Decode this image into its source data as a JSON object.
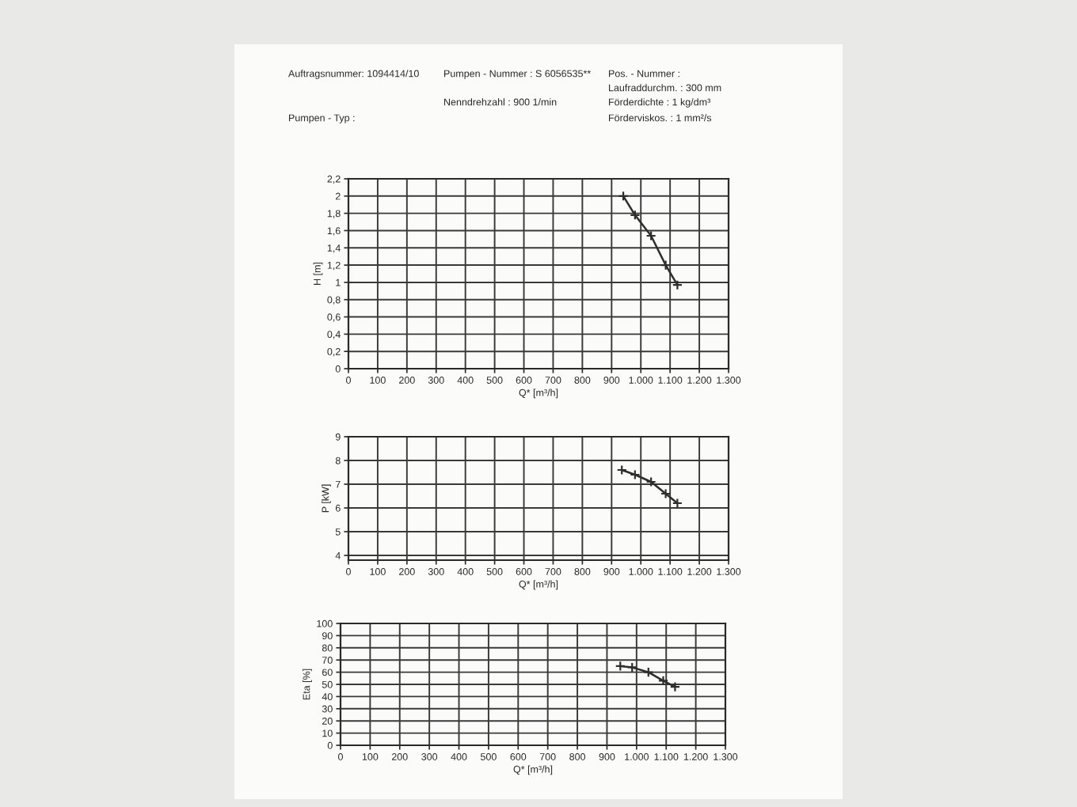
{
  "chart_data": [
    {
      "type": "other",
      "annotations": [
        "Auftragsnummer: 1094414/10",
        "Pumpen - Nummer : S 6056535**",
        "Pos. - Nummer :",
        "Laufraddurchm. : 300 mm",
        "Nenndrehzahl : 900 1/min",
        "Förderdichte : 1 kg/dm³",
        "Pumpen - Typ :",
        "Förderviskos. : 1 mm²/s"
      ]
    },
    {
      "type": "line",
      "xlabel": "Q* [m³/h]",
      "ylabel": "H [m]",
      "x": [
        940,
        980,
        1035,
        1085,
        1125
      ],
      "values": [
        2.0,
        1.78,
        1.54,
        1.2,
        0.97
      ],
      "color": "#2e2e2e",
      "marker": "cross",
      "line_style": "solid",
      "grid": true,
      "xlim": [
        0,
        1300
      ],
      "xticks": [
        0,
        100,
        200,
        300,
        400,
        500,
        600,
        700,
        800,
        900,
        {
          "value": 1000,
          "label": "1.000"
        },
        {
          "value": 1100,
          "label": "1.100"
        },
        {
          "value": 1200,
          "label": "1.200"
        },
        {
          "value": 1300,
          "label": "1.300"
        }
      ],
      "ylim": [
        0,
        2.2
      ],
      "yticks": [
        0,
        {
          "value": 0.2,
          "label": "0,2"
        },
        {
          "value": 0.4,
          "label": "0,4"
        },
        {
          "value": 0.6,
          "label": "0,6"
        },
        {
          "value": 0.8,
          "label": "0,8"
        },
        1,
        {
          "value": 1.2,
          "label": "1,2"
        },
        {
          "value": 1.4,
          "label": "1,4"
        },
        {
          "value": 1.6,
          "label": "1,6"
        },
        {
          "value": 1.8,
          "label": "1,8"
        },
        2,
        {
          "value": 2.2,
          "label": "2,2"
        }
      ]
    },
    {
      "type": "line",
      "xlabel": "Q* [m³/h]",
      "ylabel": "P [kW]",
      "x": [
        935,
        980,
        1035,
        1085,
        1125
      ],
      "values": [
        7.6,
        7.4,
        7.1,
        6.6,
        6.2
      ],
      "color": "#2e2e2e",
      "marker": "cross",
      "line_style": "solid",
      "grid": true,
      "xlim": [
        0,
        1300
      ],
      "xticks": [
        0,
        100,
        200,
        300,
        400,
        500,
        600,
        700,
        800,
        900,
        {
          "value": 1000,
          "label": "1.000"
        },
        {
          "value": 1100,
          "label": "1.100"
        },
        {
          "value": 1200,
          "label": "1.200"
        },
        {
          "value": 1300,
          "label": "1.300"
        }
      ],
      "ylim": [
        3.8,
        9
      ],
      "yticks": [
        4,
        5,
        6,
        7,
        8,
        9
      ]
    },
    {
      "type": "line",
      "xlabel": "Q* [m³/h]",
      "ylabel": "Eta [%]",
      "x": [
        945,
        985,
        1040,
        1090,
        1130
      ],
      "values": [
        65,
        64,
        60,
        53,
        48
      ],
      "color": "#2e2e2e",
      "marker": "cross",
      "line_style": "solid",
      "grid": true,
      "xlim": [
        0,
        1300
      ],
      "xticks": [
        0,
        100,
        200,
        300,
        400,
        500,
        600,
        700,
        800,
        900,
        {
          "value": 1000,
          "label": "1.000"
        },
        {
          "value": 1100,
          "label": "1.100"
        },
        {
          "value": 1200,
          "label": "1.200"
        },
        {
          "value": 1300,
          "label": "1.300"
        }
      ],
      "ylim": [
        0,
        100
      ],
      "yticks": [
        0,
        10,
        20,
        30,
        40,
        50,
        60,
        70,
        80,
        90,
        100
      ]
    }
  ]
}
